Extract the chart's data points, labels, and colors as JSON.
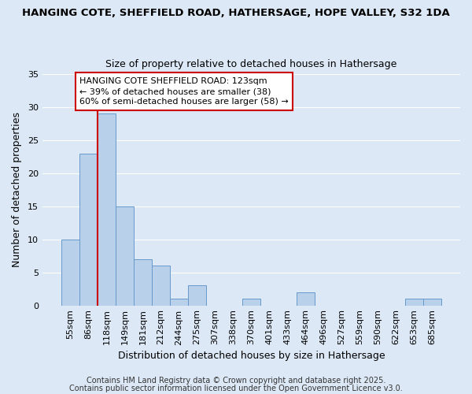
{
  "title_line1": "HANGING COTE, SHEFFIELD ROAD, HATHERSAGE, HOPE VALLEY, S32 1DA",
  "title_line2": "Size of property relative to detached houses in Hathersage",
  "xlabel": "Distribution of detached houses by size in Hathersage",
  "ylabel": "Number of detached properties",
  "categories": [
    "55sqm",
    "86sqm",
    "118sqm",
    "149sqm",
    "181sqm",
    "212sqm",
    "244sqm",
    "275sqm",
    "307sqm",
    "338sqm",
    "370sqm",
    "401sqm",
    "433sqm",
    "464sqm",
    "496sqm",
    "527sqm",
    "559sqm",
    "590sqm",
    "622sqm",
    "653sqm",
    "685sqm"
  ],
  "values": [
    10,
    23,
    29,
    15,
    7,
    6,
    1,
    3,
    0,
    0,
    1,
    0,
    0,
    2,
    0,
    0,
    0,
    0,
    0,
    1,
    1
  ],
  "bar_color": "#b8d0ea",
  "bar_edge_color": "#6699cc",
  "marker_index": 2,
  "marker_color": "#cc0000",
  "ylim": [
    0,
    35
  ],
  "yticks": [
    0,
    5,
    10,
    15,
    20,
    25,
    30,
    35
  ],
  "annotation_text": "HANGING COTE SHEFFIELD ROAD: 123sqm\n← 39% of detached houses are smaller (38)\n60% of semi-detached houses are larger (58) →",
  "annotation_box_color": "#ffffff",
  "annotation_box_edge": "#cc0000",
  "footer_line1": "Contains HM Land Registry data © Crown copyright and database right 2025.",
  "footer_line2": "Contains public sector information licensed under the Open Government Licence v3.0.",
  "background_color": "#dce8f5",
  "grid_color": "#ffffff",
  "title_fontsize": 9.5,
  "subtitle_fontsize": 9,
  "label_fontsize": 9,
  "tick_fontsize": 8,
  "annotation_fontsize": 8,
  "footer_fontsize": 7
}
